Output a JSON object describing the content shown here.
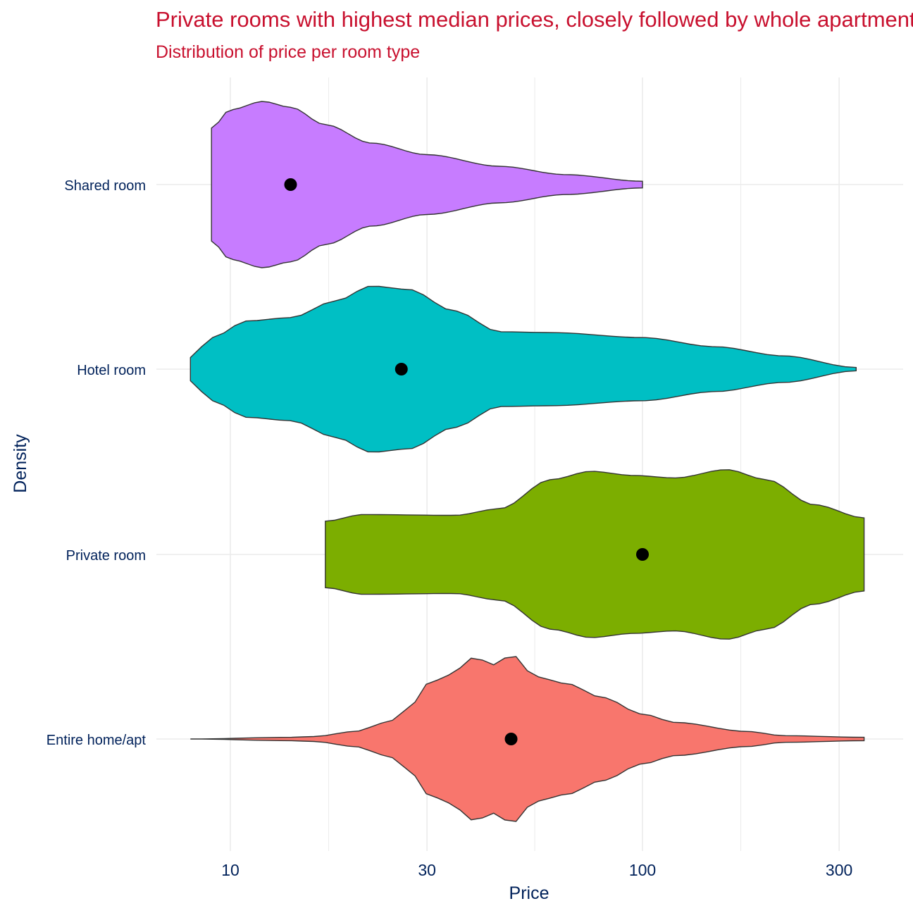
{
  "chart_data": {
    "type": "violin",
    "title": "Private rooms with highest median prices, closely followed by whole apartments",
    "subtitle": "Distribution of price per room type",
    "xlabel": "Price",
    "ylabel": "Density",
    "x_scale": "log10",
    "xlim": [
      7.2,
      400
    ],
    "x_ticks": [
      10,
      30,
      100,
      300
    ],
    "x_tick_labels": [
      "10",
      "30",
      "100",
      "300"
    ],
    "grid": true,
    "legend": "none",
    "categories": [
      "Shared room",
      "Hotel room",
      "Private room",
      "Entire home/apt"
    ],
    "series": [
      {
        "name": "Shared room",
        "color": "#C77CFF",
        "median": 14,
        "range": [
          9,
          100
        ],
        "profile": [
          [
            9,
            0.68
          ],
          [
            10,
            0.9
          ],
          [
            12,
            1.0
          ],
          [
            14,
            0.93
          ],
          [
            17,
            0.72
          ],
          [
            22,
            0.5
          ],
          [
            30,
            0.36
          ],
          [
            45,
            0.22
          ],
          [
            65,
            0.12
          ],
          [
            100,
            0.04
          ]
        ]
      },
      {
        "name": "Hotel room",
        "color": "#00BFC4",
        "median": 26,
        "range": [
          8,
          330
        ],
        "profile": [
          [
            8,
            0.14
          ],
          [
            9,
            0.38
          ],
          [
            11,
            0.58
          ],
          [
            14,
            0.62
          ],
          [
            18,
            0.82
          ],
          [
            22,
            1.0
          ],
          [
            27,
            0.96
          ],
          [
            35,
            0.7
          ],
          [
            45,
            0.45
          ],
          [
            60,
            0.44
          ],
          [
            100,
            0.38
          ],
          [
            150,
            0.27
          ],
          [
            220,
            0.16
          ],
          [
            330,
            0.02
          ]
        ]
      },
      {
        "name": "Private room",
        "color": "#7CAE00",
        "median": 100,
        "range": [
          17,
          345
        ],
        "profile": [
          [
            17,
            0.4
          ],
          [
            21,
            0.48
          ],
          [
            35,
            0.47
          ],
          [
            45,
            0.55
          ],
          [
            60,
            0.9
          ],
          [
            75,
            1.0
          ],
          [
            95,
            0.95
          ],
          [
            120,
            0.92
          ],
          [
            160,
            1.02
          ],
          [
            200,
            0.9
          ],
          [
            260,
            0.6
          ],
          [
            345,
            0.44
          ]
        ]
      },
      {
        "name": "Entire home/apt",
        "color": "#F8766D",
        "median": 48,
        "range": [
          8,
          345
        ],
        "profile": [
          [
            8,
            0.0
          ],
          [
            14,
            0.02
          ],
          [
            16,
            0.03
          ],
          [
            20,
            0.09
          ],
          [
            24,
            0.2
          ],
          [
            27,
            0.35
          ],
          [
            30,
            0.66
          ],
          [
            34,
            0.77
          ],
          [
            39,
            0.98
          ],
          [
            44,
            0.89
          ],
          [
            48,
            1.02
          ],
          [
            55,
            0.75
          ],
          [
            65,
            0.67
          ],
          [
            80,
            0.5
          ],
          [
            100,
            0.3
          ],
          [
            120,
            0.2
          ],
          [
            180,
            0.09
          ],
          [
            220,
            0.04
          ],
          [
            345,
            0.02
          ]
        ]
      }
    ],
    "median_marker_color": "#000000"
  },
  "colors": {
    "title": "#C8102E",
    "axis_text": "#00215A",
    "gridline": "#EBEBEB",
    "outline": "#333333"
  }
}
